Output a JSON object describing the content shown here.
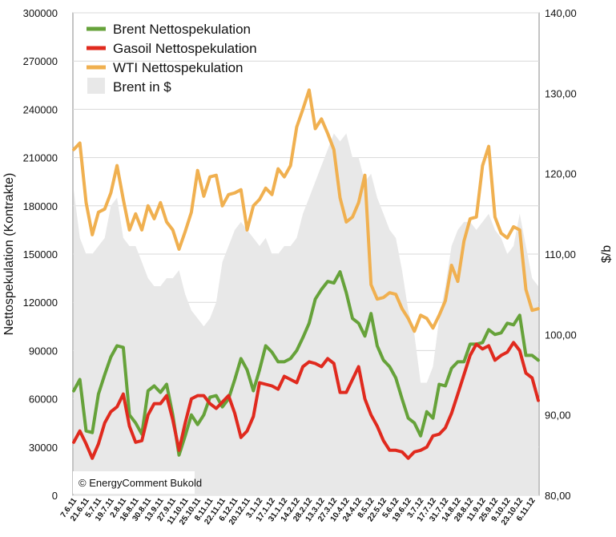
{
  "chart_data": {
    "type": "line",
    "title": "",
    "ylabel": "Nettospekulation (Kontrakte)",
    "y2label": "$/b",
    "ylim": [
      0,
      300000
    ],
    "y2lim": [
      80,
      140
    ],
    "yticks": [
      "0",
      "30000",
      "60000",
      "90000",
      "120000",
      "150000",
      "180000",
      "210000",
      "240000",
      "270000",
      "300000"
    ],
    "y2ticks": [
      "80,00",
      "90,00",
      "100,00",
      "110,00",
      "120,00",
      "130,00",
      "140,00"
    ],
    "x_labels": [
      "7.6.11",
      "21.6.11",
      "5.7.11",
      "19.7.11",
      "2.8.11",
      "16.8.11",
      "30.8.11",
      "13.9.11",
      "27.9.11",
      "11.10.11",
      "25.10.11",
      "8.11.11",
      "22.11.11",
      "6.12.11",
      "20.12.11",
      "3.1.12",
      "17.1.12",
      "31.1.12",
      "14.2.12",
      "28.2.12",
      "13.3.12",
      "27.3.12",
      "10.4.12",
      "24.4.12",
      "8.5.12",
      "22.5.12",
      "5.6.12",
      "19.6.12",
      "3.7.12",
      "17.7.12",
      "31.7.12",
      "14.8.12",
      "28.8.12",
      "11.9.12",
      "25.9.12",
      "9.10.12",
      "23.10.12",
      "6.11.12"
    ],
    "legend": {
      "placement": "top-left",
      "items": [
        {
          "label": "Brent Nettospekulation",
          "color": "#66a23a",
          "kind": "line"
        },
        {
          "label": "Gasoil Nettospekulation",
          "color": "#e02a1e",
          "kind": "line"
        },
        {
          "label": "WTI Nettospekulation",
          "color": "#f0b050",
          "kind": "line"
        },
        {
          "label": "Brent in $",
          "color": "#e8e8e8",
          "kind": "area"
        }
      ]
    },
    "grid": "horizontal",
    "series": [
      {
        "name": "Brent Nettospekulation",
        "axis": "left",
        "color": "#66a23a",
        "values": [
          65000,
          72000,
          40000,
          39000,
          63000,
          75000,
          86000,
          93000,
          92000,
          50000,
          45000,
          38000,
          65000,
          68000,
          64000,
          69000,
          50000,
          25000,
          37000,
          50000,
          44000,
          50000,
          61000,
          62000,
          55000,
          60000,
          72000,
          85000,
          78000,
          65000,
          78000,
          93000,
          89000,
          83000,
          83000,
          85000,
          90000,
          98000,
          107000,
          122000,
          128000,
          133000,
          132000,
          139000,
          126000,
          110000,
          107000,
          99000,
          113000,
          93000,
          84000,
          80000,
          73000,
          60000,
          48000,
          45000,
          37000,
          52000,
          48000,
          69000,
          68000,
          79000,
          83000,
          83000,
          94000,
          94000,
          95000,
          103000,
          100000,
          101000,
          107000,
          106000,
          112000,
          87000,
          87000,
          84000
        ]
      },
      {
        "name": "Gasoil Nettospekulation",
        "axis": "left",
        "color": "#e02a1e",
        "values": [
          33000,
          40000,
          32000,
          23000,
          32000,
          45000,
          52000,
          55000,
          63000,
          43000,
          33000,
          34000,
          50000,
          57000,
          57000,
          62000,
          47000,
          28000,
          45000,
          60000,
          62000,
          62000,
          57000,
          54000,
          58000,
          62000,
          51000,
          36000,
          40000,
          49000,
          70000,
          69000,
          68000,
          66000,
          74000,
          72000,
          70000,
          80000,
          83000,
          82000,
          80000,
          85000,
          82000,
          64000,
          64000,
          72000,
          80000,
          60000,
          50000,
          43000,
          34000,
          28000,
          28000,
          27000,
          23000,
          27000,
          28000,
          30000,
          37000,
          38000,
          42000,
          51000,
          63000,
          75000,
          87000,
          94000,
          91000,
          93000,
          84000,
          87000,
          89000,
          95000,
          90000,
          76000,
          73000,
          59000
        ]
      },
      {
        "name": "WTI Nettospekulation",
        "axis": "left",
        "color": "#f0b050",
        "values": [
          215000,
          219000,
          182000,
          162000,
          176000,
          178000,
          188000,
          205000,
          184000,
          165000,
          175000,
          165000,
          180000,
          172000,
          182000,
          170000,
          165000,
          153000,
          164000,
          176000,
          202000,
          186000,
          198000,
          199000,
          180000,
          187000,
          188000,
          190000,
          165000,
          180000,
          184000,
          191000,
          187000,
          203000,
          198000,
          205000,
          229000,
          240000,
          252000,
          228000,
          234000,
          225000,
          215000,
          185000,
          170000,
          173000,
          182000,
          199000,
          131000,
          122000,
          123000,
          126000,
          125000,
          116000,
          110000,
          102000,
          112000,
          110000,
          104000,
          112000,
          121000,
          143000,
          133000,
          158000,
          172000,
          173000,
          205000,
          217000,
          173000,
          163000,
          160000,
          167000,
          165000,
          128000,
          115000,
          116000
        ]
      },
      {
        "name": "Brent in $",
        "axis": "right",
        "color": "#e8e8e8",
        "kind": "area",
        "values": [
          118,
          112,
          110,
          110,
          111,
          112,
          116,
          117,
          112,
          111,
          111,
          109,
          107,
          106,
          106,
          107,
          107,
          108,
          105,
          103,
          102,
          101,
          102,
          104,
          109,
          111,
          113,
          114,
          113,
          112,
          111,
          112,
          110,
          110,
          111,
          111,
          112,
          115,
          117,
          119,
          121,
          123,
          125,
          124,
          125,
          122,
          122,
          119,
          120,
          117,
          115,
          113,
          112,
          108,
          103,
          100,
          94,
          94,
          96,
          102,
          106,
          111,
          113,
          114,
          114,
          113,
          114,
          115,
          113,
          112,
          110,
          111,
          115,
          111,
          107,
          106
        ]
      }
    ]
  },
  "watermark": "© EnergyComment Bukold"
}
